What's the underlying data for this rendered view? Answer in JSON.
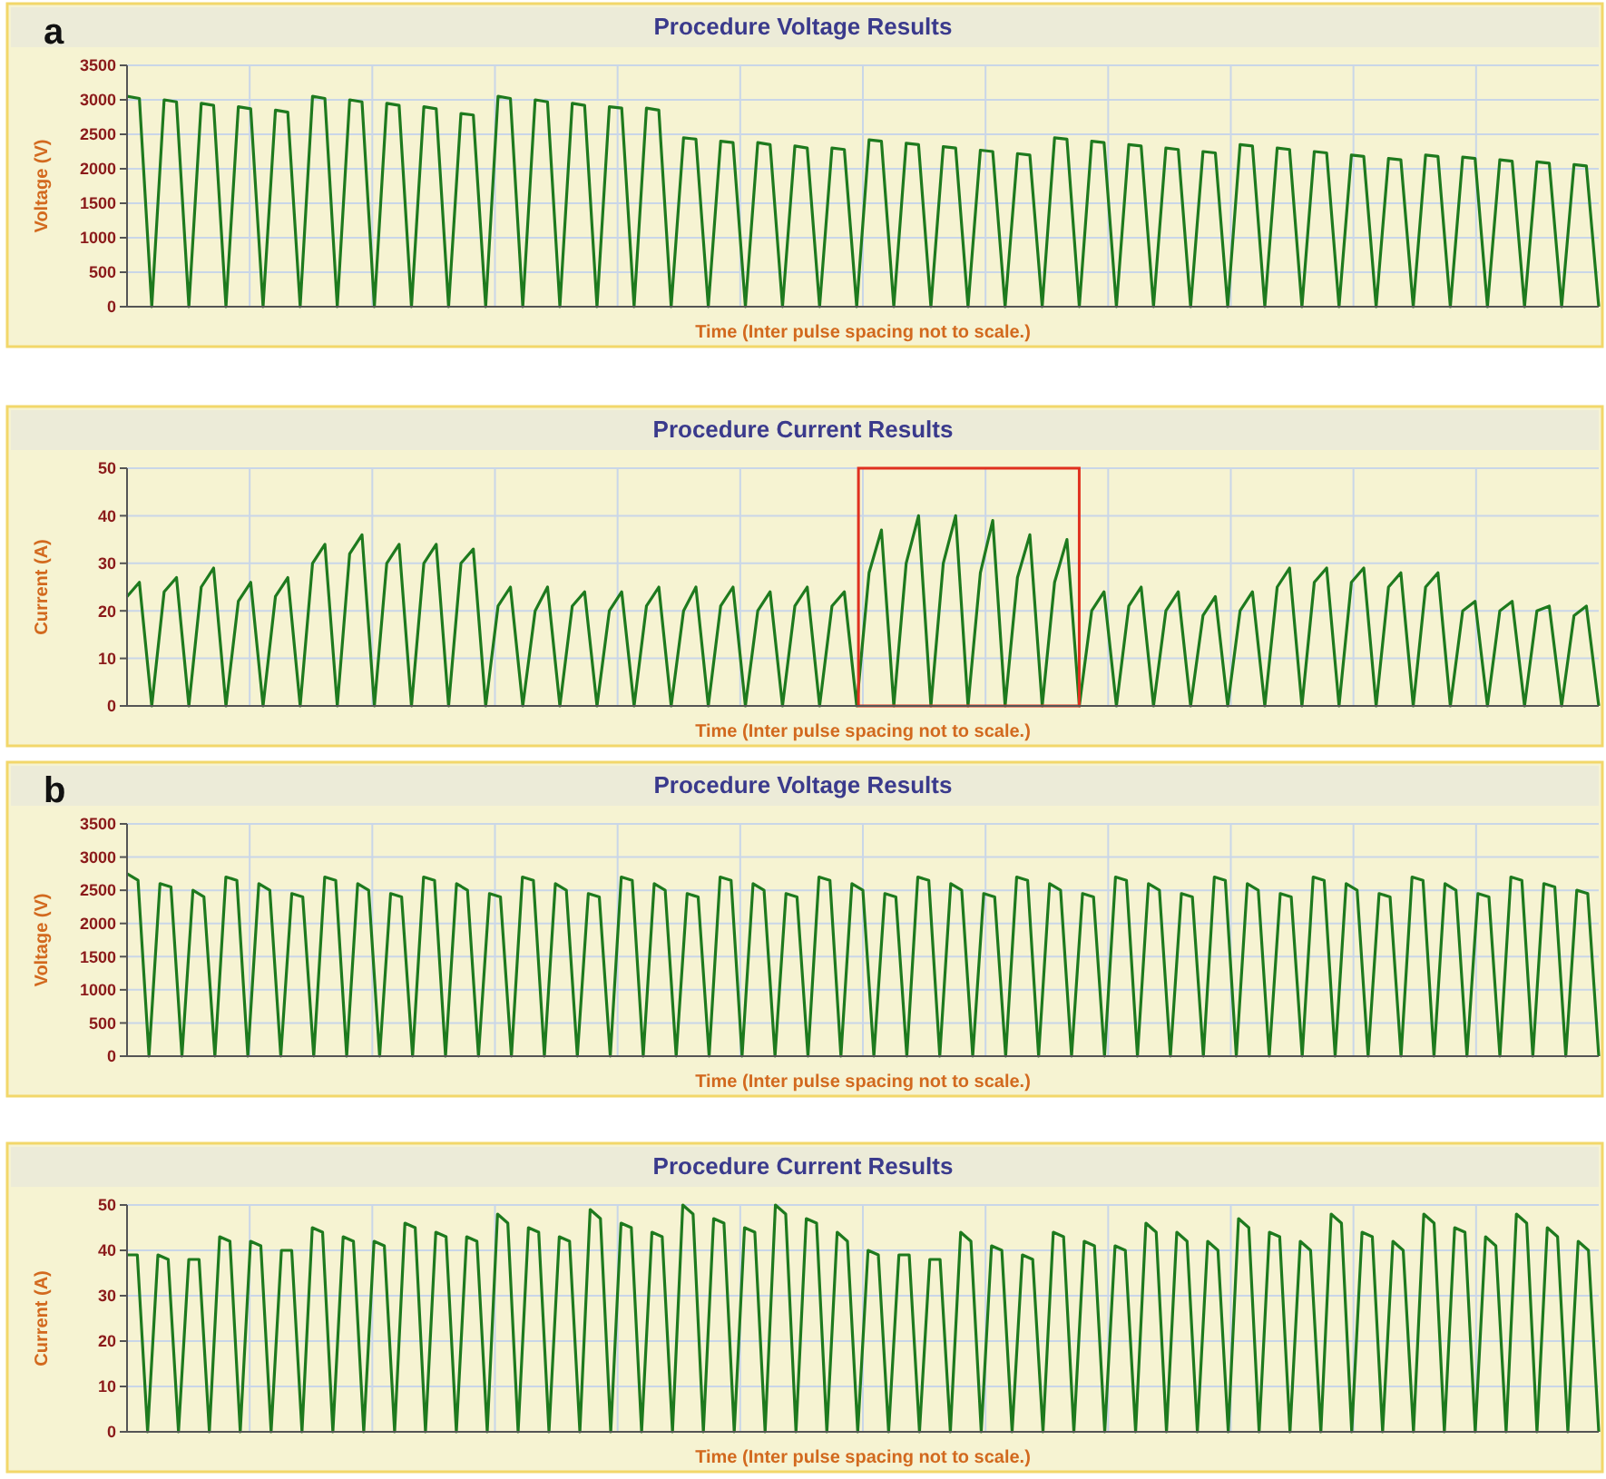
{
  "chart_data": [
    {
      "type": "line",
      "title": "Procedure Voltage Results",
      "xlabel": "Time (Inter pulse spacing not to scale.)",
      "ylabel": "Voltage (V)",
      "annotations": [
        "a"
      ],
      "ylim": [
        0,
        3500
      ],
      "yticks": [
        0,
        500,
        1000,
        1500,
        2000,
        2500,
        3000,
        3500
      ],
      "grid": true,
      "tick_labels": "y",
      "categories": [
        null,
        null,
        null,
        null,
        null,
        null,
        null,
        null,
        null,
        null,
        null,
        null,
        null,
        null,
        null,
        null,
        null,
        null,
        null,
        null,
        null,
        null,
        null,
        null,
        null,
        null,
        null,
        null,
        null,
        null,
        null,
        null,
        null,
        null,
        null,
        null,
        null,
        null,
        null,
        null,
        null,
        null,
        null,
        null,
        null,
        null,
        null,
        null,
        null,
        null,
        null,
        null,
        null,
        null,
        null,
        null,
        null,
        null,
        null,
        null,
        null,
        null,
        null,
        null,
        null,
        null,
        null,
        null,
        null,
        null,
        null,
        null,
        null,
        null,
        null,
        null,
        null,
        null,
        null,
        null,
        null,
        null,
        null,
        null,
        null,
        null,
        null,
        null,
        null,
        null,
        null,
        null,
        null,
        null,
        null,
        null,
        null,
        null,
        null,
        null,
        null,
        null,
        null,
        null,
        null,
        null,
        null,
        null,
        null,
        null,
        null,
        null,
        null,
        null,
        null,
        null,
        null,
        null,
        null,
        null
      ],
      "series": [
        {
          "color": "#1e7a1e",
          "values": [
            3050,
            3020,
            0,
            3000,
            2970,
            0,
            2950,
            2920,
            0,
            2900,
            2870,
            0,
            2850,
            2820,
            0,
            3050,
            3020,
            0,
            3000,
            2970,
            0,
            2950,
            2920,
            0,
            2900,
            2870,
            0,
            2800,
            2780,
            0,
            3050,
            3020,
            0,
            3000,
            2970,
            0,
            2950,
            2920,
            0,
            2900,
            2880,
            0,
            2880,
            2850,
            0,
            2450,
            2430,
            0,
            2400,
            2380,
            0,
            2380,
            2350,
            0,
            2330,
            2300,
            0,
            2300,
            2280,
            0,
            2420,
            2400,
            0,
            2370,
            2350,
            0,
            2320,
            2300,
            0,
            2270,
            2250,
            0,
            2220,
            2200,
            0,
            2450,
            2430,
            0,
            2400,
            2380,
            0,
            2350,
            2330,
            0,
            2300,
            2280,
            0,
            2250,
            2230,
            0,
            2350,
            2330,
            0,
            2300,
            2280,
            0,
            2250,
            2230,
            0,
            2200,
            2180,
            0,
            2150,
            2130,
            0,
            2200,
            2180,
            0,
            2170,
            2150,
            0,
            2130,
            2110,
            0,
            2100,
            2080,
            0,
            2060,
            2040,
            0
          ]
        }
      ]
    },
    {
      "type": "line",
      "title": "Procedure Current Results",
      "xlabel": "Time (Inter pulse spacing not to scale.)",
      "ylabel": "Current (A)",
      "ylim": [
        0,
        50
      ],
      "yticks": [
        0,
        10,
        20,
        30,
        40,
        50
      ],
      "grid": true,
      "tick_labels": "y",
      "categories": [
        null,
        null,
        null,
        null,
        null,
        null,
        null,
        null,
        null,
        null,
        null,
        null,
        null,
        null,
        null,
        null,
        null,
        null,
        null,
        null,
        null,
        null,
        null,
        null,
        null,
        null,
        null,
        null,
        null,
        null,
        null,
        null,
        null,
        null,
        null,
        null,
        null,
        null,
        null,
        null,
        null,
        null,
        null,
        null,
        null,
        null,
        null,
        null,
        null,
        null,
        null,
        null,
        null,
        null,
        null,
        null,
        null,
        null,
        null,
        null,
        null,
        null,
        null,
        null,
        null,
        null,
        null,
        null,
        null,
        null,
        null,
        null,
        null,
        null,
        null,
        null,
        null,
        null,
        null,
        null,
        null,
        null,
        null,
        null,
        null,
        null,
        null,
        null,
        null,
        null,
        null,
        null,
        null,
        null,
        null,
        null,
        null,
        null,
        null,
        null,
        null,
        null,
        null,
        null,
        null,
        null,
        null,
        null,
        null,
        null,
        null,
        null,
        null,
        null,
        null,
        null,
        null,
        null,
        null,
        null
      ],
      "series": [
        {
          "color": "#1e7a1e",
          "values": [
            23,
            26,
            0,
            24,
            27,
            0,
            25,
            29,
            0,
            22,
            26,
            0,
            23,
            27,
            0,
            30,
            34,
            0,
            32,
            36,
            0,
            30,
            34,
            0,
            30,
            34,
            0,
            30,
            33,
            0,
            21,
            25,
            0,
            20,
            25,
            0,
            21,
            24,
            0,
            20,
            24,
            0,
            21,
            25,
            0,
            20,
            25,
            0,
            21,
            25,
            0,
            20,
            24,
            0,
            21,
            25,
            0,
            21,
            24,
            0,
            28,
            37,
            0,
            30,
            40,
            0,
            30,
            40,
            0,
            28,
            39,
            0,
            27,
            36,
            0,
            26,
            35,
            0,
            20,
            24,
            0,
            21,
            25,
            0,
            20,
            24,
            0,
            19,
            23,
            0,
            20,
            24,
            0,
            25,
            29,
            0,
            26,
            29,
            0,
            26,
            29,
            0,
            25,
            28,
            0,
            25,
            28,
            0,
            20,
            22,
            0,
            20,
            22,
            0,
            20,
            21,
            0,
            19,
            21,
            0
          ]
        }
      ]
    },
    {
      "type": "line",
      "title": "Procedure Voltage Results",
      "xlabel": "Time (Inter pulse spacing not to scale.)",
      "ylabel": "Voltage (V)",
      "annotations": [
        "b"
      ],
      "ylim": [
        0,
        3500
      ],
      "yticks": [
        0,
        500,
        1000,
        1500,
        2000,
        2500,
        3000,
        3500
      ],
      "grid": true,
      "tick_labels": "y",
      "categories": [
        null,
        null,
        null,
        null,
        null,
        null,
        null,
        null,
        null,
        null,
        null,
        null,
        null,
        null,
        null,
        null,
        null,
        null,
        null,
        null,
        null,
        null,
        null,
        null,
        null,
        null,
        null,
        null,
        null,
        null,
        null,
        null,
        null,
        null,
        null,
        null,
        null,
        null,
        null,
        null,
        null,
        null,
        null,
        null,
        null,
        null,
        null,
        null,
        null,
        null,
        null,
        null,
        null,
        null,
        null,
        null,
        null,
        null,
        null,
        null,
        null,
        null,
        null,
        null,
        null,
        null,
        null,
        null,
        null,
        null,
        null,
        null,
        null,
        null,
        null,
        null,
        null,
        null,
        null,
        null,
        null,
        null,
        null,
        null,
        null,
        null,
        null,
        null,
        null,
        null,
        null,
        null,
        null,
        null,
        null,
        null,
        null,
        null,
        null,
        null,
        null,
        null,
        null,
        null,
        null,
        null,
        null,
        null,
        null,
        null,
        null,
        null,
        null,
        null,
        null,
        null,
        null,
        null,
        null,
        null,
        null,
        null,
        null,
        null,
        null,
        null,
        null,
        null,
        null,
        null,
        null,
        null,
        null,
        null,
        null
      ],
      "series": [
        {
          "color": "#1e7a1e",
          "values": [
            2750,
            2650,
            0,
            2600,
            2550,
            0,
            2500,
            2400,
            0,
            2700,
            2650,
            0,
            2600,
            2500,
            0,
            2450,
            2400,
            0,
            2700,
            2650,
            0,
            2600,
            2500,
            0,
            2450,
            2400,
            0,
            2700,
            2650,
            0,
            2600,
            2500,
            0,
            2450,
            2400,
            0,
            2700,
            2650,
            0,
            2600,
            2500,
            0,
            2450,
            2400,
            0,
            2700,
            2650,
            0,
            2600,
            2500,
            0,
            2450,
            2400,
            0,
            2700,
            2650,
            0,
            2600,
            2500,
            0,
            2450,
            2400,
            0,
            2700,
            2650,
            0,
            2600,
            2500,
            0,
            2450,
            2400,
            0,
            2700,
            2650,
            0,
            2600,
            2500,
            0,
            2450,
            2400,
            0,
            2700,
            2650,
            0,
            2600,
            2500,
            0,
            2450,
            2400,
            0,
            2700,
            2650,
            0,
            2600,
            2500,
            0,
            2450,
            2400,
            0,
            2700,
            2650,
            0,
            2600,
            2500,
            0,
            2450,
            2400,
            0,
            2700,
            2650,
            0,
            2600,
            2500,
            0,
            2450,
            2400,
            0,
            2700,
            2650,
            0,
            2600,
            2500,
            0,
            2450,
            2400,
            0,
            2700,
            2650,
            0,
            2600,
            2550,
            0,
            2500,
            2450,
            0
          ]
        }
      ]
    },
    {
      "type": "line",
      "title": "Procedure Current Results",
      "xlabel": "Time (Inter pulse spacing not to scale.)",
      "ylabel": "Current (A)",
      "ylim": [
        0,
        50
      ],
      "yticks": [
        0,
        10,
        20,
        30,
        40,
        50
      ],
      "grid": true,
      "tick_labels": "y",
      "categories": [
        null,
        null,
        null,
        null,
        null,
        null,
        null,
        null,
        null,
        null,
        null,
        null,
        null,
        null,
        null,
        null,
        null,
        null,
        null,
        null,
        null,
        null,
        null,
        null,
        null,
        null,
        null,
        null,
        null,
        null,
        null,
        null,
        null,
        null,
        null,
        null,
        null,
        null,
        null,
        null,
        null,
        null,
        null,
        null,
        null,
        null,
        null,
        null,
        null,
        null,
        null,
        null,
        null,
        null,
        null,
        null,
        null,
        null,
        null,
        null,
        null,
        null,
        null,
        null,
        null,
        null,
        null,
        null,
        null,
        null,
        null,
        null,
        null,
        null,
        null,
        null,
        null,
        null,
        null,
        null,
        null,
        null,
        null,
        null,
        null,
        null,
        null,
        null,
        null,
        null,
        null,
        null,
        null,
        null,
        null,
        null,
        null,
        null,
        null,
        null,
        null,
        null,
        null,
        null,
        null,
        null,
        null,
        null,
        null,
        null,
        null,
        null,
        null,
        null,
        null,
        null,
        null,
        null,
        null,
        null,
        null,
        null,
        null,
        null,
        null,
        null,
        null,
        null,
        null,
        null,
        null,
        null,
        null,
        null,
        null,
        null,
        null,
        null,
        null,
        null,
        null,
        null,
        null,
        null
      ],
      "series": [
        {
          "color": "#1e7a1e",
          "values": [
            39,
            39,
            0,
            39,
            38,
            0,
            38,
            38,
            0,
            43,
            42,
            0,
            42,
            41,
            0,
            40,
            40,
            0,
            45,
            44,
            0,
            43,
            42,
            0,
            42,
            41,
            0,
            46,
            45,
            0,
            44,
            43,
            0,
            43,
            42,
            0,
            48,
            46,
            0,
            45,
            44,
            0,
            43,
            42,
            0,
            49,
            47,
            0,
            46,
            45,
            0,
            44,
            43,
            0,
            50,
            48,
            0,
            47,
            46,
            0,
            45,
            44,
            0,
            50,
            48,
            0,
            47,
            46,
            0,
            44,
            42,
            0,
            40,
            39,
            0,
            39,
            39,
            0,
            38,
            38,
            0,
            44,
            42,
            0,
            41,
            40,
            0,
            39,
            38,
            0,
            44,
            43,
            0,
            42,
            41,
            0,
            41,
            40,
            0,
            46,
            44,
            0,
            44,
            42,
            0,
            42,
            40,
            0,
            47,
            45,
            0,
            44,
            43,
            0,
            42,
            40,
            0,
            48,
            46,
            0,
            44,
            43,
            0,
            42,
            40,
            0,
            48,
            46,
            0,
            45,
            44,
            0,
            43,
            41,
            0,
            48,
            46,
            0,
            45,
            43,
            0,
            42,
            40,
            0
          ]
        }
      ]
    }
  ]
}
